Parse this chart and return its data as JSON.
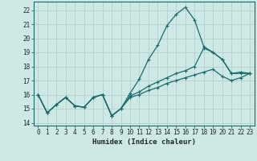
{
  "xlabel": "Humidex (Indice chaleur)",
  "bg_color": "#cde8e5",
  "grid_color": "#b0d0ce",
  "line_color": "#1a6b6b",
  "x_ticks": [
    0,
    1,
    2,
    3,
    4,
    5,
    6,
    7,
    8,
    9,
    10,
    11,
    12,
    13,
    14,
    15,
    16,
    17,
    18,
    19,
    20,
    21,
    22,
    23
  ],
  "y_ticks": [
    14,
    15,
    16,
    17,
    18,
    19,
    20,
    21,
    22
  ],
  "ylim": [
    13.8,
    22.6
  ],
  "xlim": [
    -0.5,
    23.5
  ],
  "line1_y": [
    16.0,
    14.7,
    15.3,
    15.8,
    15.2,
    15.1,
    15.8,
    16.0,
    14.5,
    15.0,
    16.1,
    17.1,
    18.5,
    19.5,
    20.9,
    21.7,
    22.2,
    21.3,
    19.4,
    19.0,
    18.5,
    17.5,
    17.6,
    17.5
  ],
  "line2_y": [
    16.0,
    14.7,
    15.3,
    15.8,
    15.2,
    15.1,
    15.8,
    16.0,
    14.5,
    15.0,
    15.9,
    16.2,
    16.6,
    16.9,
    17.2,
    17.5,
    17.7,
    18.0,
    19.3,
    19.0,
    18.5,
    17.5,
    17.5,
    17.5
  ],
  "line3_y": [
    16.0,
    14.7,
    15.3,
    15.8,
    15.2,
    15.1,
    15.8,
    16.0,
    14.5,
    15.0,
    15.8,
    16.0,
    16.3,
    16.5,
    16.8,
    17.0,
    17.2,
    17.4,
    17.6,
    17.8,
    17.3,
    17.0,
    17.2,
    17.5
  ],
  "marker": "+",
  "markersize": 3,
  "linewidth": 0.9,
  "tick_fontsize": 5.5,
  "label_fontsize": 6.5
}
